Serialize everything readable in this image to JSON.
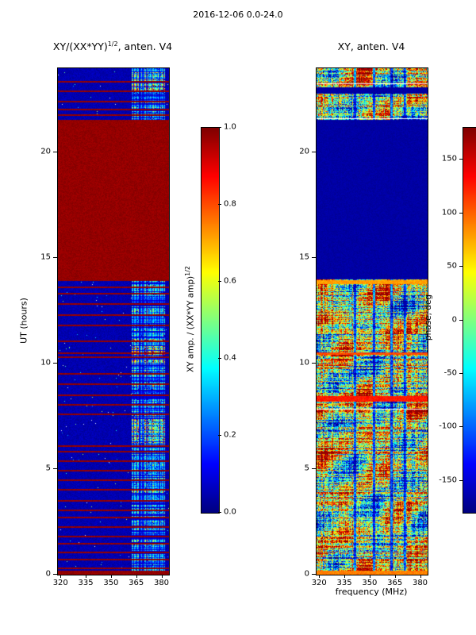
{
  "figure_title": "2016-12-06 0.0-24.0",
  "panels": {
    "left": {
      "title_main": "XY/(XX*YY)",
      "title_sup": "1/2",
      "title_suffix": ", anten. V4"
    },
    "right": {
      "title": "XY, anten. V4"
    }
  },
  "x_axis": {
    "label": "frequency (MHz)",
    "tick_labels": [
      "320",
      "335",
      "350",
      "365",
      "380"
    ]
  },
  "y_axis": {
    "label": "UT (hours)",
    "tick_labels": [
      "0",
      "5",
      "10",
      "15",
      "20"
    ]
  },
  "colorbars": {
    "left": {
      "label_main": "XY amp. / (XX*YY amp)",
      "label_sup": "1/2",
      "tick_labels": [
        "0.0",
        "0.2",
        "0.4",
        "0.6",
        "0.8",
        "1.0"
      ]
    },
    "right": {
      "label": "phase, deg",
      "tick_labels": [
        "-150",
        "-100",
        "-50",
        "0",
        "50",
        "100",
        "150"
      ]
    }
  },
  "chart_data": {
    "type": "heatmap",
    "title": "2016-12-06 0.0-24.0",
    "colormap": "jet",
    "x": {
      "label": "frequency (MHz)",
      "range_mhz": [
        318,
        384
      ],
      "ticks": [
        320,
        335,
        350,
        365,
        380
      ]
    },
    "y": {
      "label": "UT (hours)",
      "range_hours": [
        0,
        24
      ],
      "ticks": [
        0,
        5,
        10,
        15,
        20
      ]
    },
    "panels": [
      {
        "id": "amplitude_ratio",
        "title": "XY/(XX*YY)^(1/2), anten. V4",
        "quantity": "XY amp. / (XX*YY amp)^(1/2)",
        "value_range": [
          0.0,
          1.0
        ],
        "background_value": 0.03,
        "saturated_blocks_hours": [
          [
            13.9,
            21.55
          ],
          [
            0.0,
            0.18
          ]
        ],
        "saturated_line_hours": [
          0.35,
          0.75,
          1.1,
          1.5,
          1.85,
          2.3,
          2.75,
          3.1,
          3.55,
          4.05,
          4.5,
          4.95,
          5.4,
          5.85,
          6.15,
          7.65,
          8.1,
          8.55,
          9.05,
          9.55,
          10.35,
          10.55,
          11.1,
          11.85,
          12.35,
          12.85,
          13.35,
          13.65,
          21.8,
          22.1,
          22.45,
          22.95,
          23.4
        ],
        "active_band_mhz": [
          361.5,
          381.5
        ],
        "band_hot_hours": [
          [
            6.2,
            7.5
          ],
          [
            9.9,
            11.35
          ],
          [
            22.9,
            23.9
          ]
        ],
        "noise_seed": 1234
      },
      {
        "id": "phase_deg",
        "title": "XY, anten. V4",
        "quantity": "phase, deg",
        "value_range": [
          -180,
          180
        ],
        "quiet_blocks_hours": [
          [
            14.0,
            21.55
          ],
          [
            22.78,
            23.08
          ]
        ],
        "white_line_hours": [
          7.85,
          21.62,
          23.28
        ],
        "uniform_rows": [
          [
            8.2,
            8.45,
            0.85
          ],
          [
            13.75,
            13.95,
            0.72
          ],
          [
            0.0,
            0.18,
            0.75
          ],
          [
            10.42,
            10.55,
            0.8
          ]
        ],
        "dark_columns_mhz": [
          340.5,
          352.0,
          362.5,
          370.5
        ],
        "noise_seed": 77
      }
    ]
  }
}
